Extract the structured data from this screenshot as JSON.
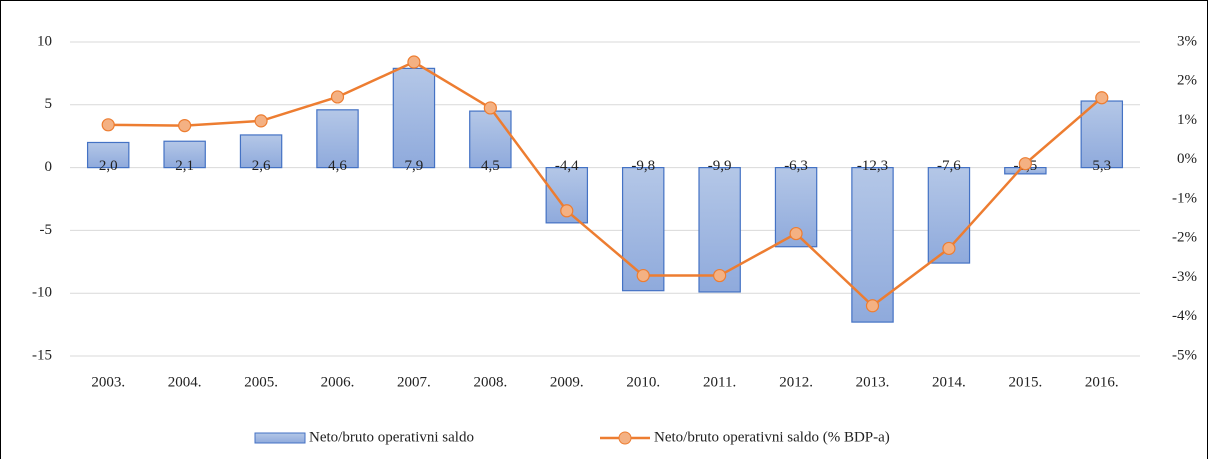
{
  "chart_data": {
    "type": "bar",
    "categories": [
      "2003.",
      "2004.",
      "2005.",
      "2006.",
      "2007.",
      "2008.",
      "2009.",
      "2010.",
      "2011.",
      "2012.",
      "2013.",
      "2014.",
      "2015.",
      "2016."
    ],
    "series": [
      {
        "name": "Neto/bruto operativni saldo",
        "color": "#8faadc",
        "values": [
          2.0,
          2.1,
          2.6,
          4.6,
          7.9,
          4.5,
          -4.4,
          -9.8,
          -9.9,
          -6.3,
          -12.3,
          -7.6,
          -0.5,
          5.3
        ],
        "value_labels": [
          "2,0",
          "2,1",
          "2,6",
          "4,6",
          "7,9",
          "4,5",
          "-4,4",
          "-9,8",
          "-9,9",
          "-6,3",
          "-12,3",
          "-7,6",
          "-0,5",
          "5,3"
        ]
      },
      {
        "name": "Neto/bruto operativni saldo (% BDP-a)",
        "color": "#ed7d31",
        "type": "line",
        "axis": "y2",
        "values": [
          0.89,
          0.87,
          0.99,
          1.6,
          2.49,
          1.32,
          -1.3,
          -2.95,
          -2.95,
          -1.88,
          -3.72,
          -2.26,
          -0.1,
          1.58
        ]
      }
    ],
    "ylim": [
      -15,
      10
    ],
    "yticks": [
      -15,
      -10,
      -5,
      0,
      5,
      10
    ],
    "y2lim": [
      -5,
      3
    ],
    "y2ticks": [
      {
        "value": -5,
        "label": "-5%"
      },
      {
        "value": -4,
        "label": "-4%"
      },
      {
        "value": -3,
        "label": "-3%"
      },
      {
        "value": -2,
        "label": "-2%"
      },
      {
        "value": -1,
        "label": "-1%"
      },
      {
        "value": 0,
        "label": "0%"
      },
      {
        "value": 1,
        "label": "1%"
      },
      {
        "value": 2,
        "label": "2%"
      },
      {
        "value": 3,
        "label": "3%"
      }
    ],
    "grid": true,
    "legend": "bottom"
  }
}
